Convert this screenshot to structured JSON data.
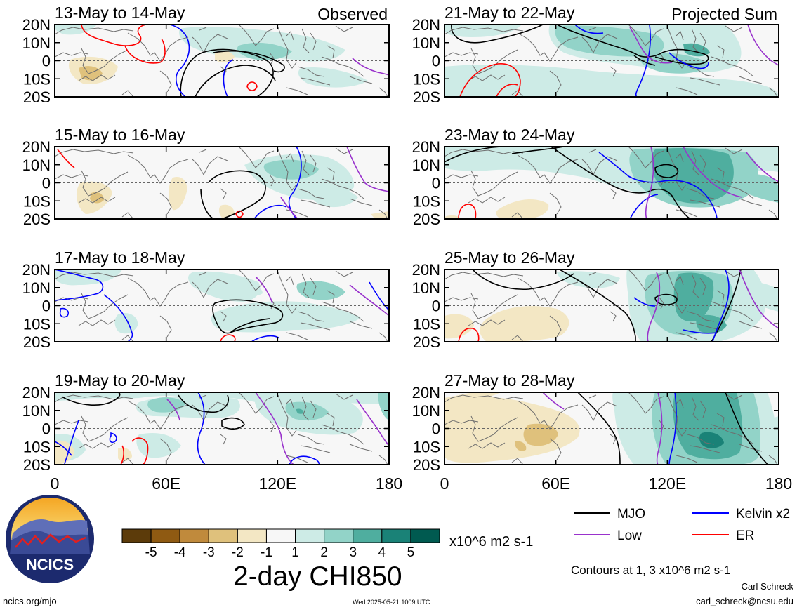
{
  "panels_left_header": "Observed",
  "panels_right_header": "Projected Sum",
  "lat_labels": [
    "20N",
    "10N",
    "0",
    "10S",
    "20S"
  ],
  "lon_labels": [
    "0",
    "60E",
    "120E",
    "180"
  ],
  "panels": [
    {
      "date": "13-May to 14-May",
      "column": "left",
      "row": 0
    },
    {
      "date": "15-May to 16-May",
      "column": "left",
      "row": 1
    },
    {
      "date": "17-May to 18-May",
      "column": "left",
      "row": 2
    },
    {
      "date": "19-May to 20-May",
      "column": "left",
      "row": 3
    },
    {
      "date": "21-May to 22-May",
      "column": "right",
      "row": 0
    },
    {
      "date": "23-May to 24-May",
      "column": "right",
      "row": 1
    },
    {
      "date": "25-May to 26-May",
      "column": "right",
      "row": 2
    },
    {
      "date": "27-May to 28-May",
      "column": "right",
      "row": 3
    }
  ],
  "colorbar": {
    "labels": [
      "-5",
      "-4",
      "-3",
      "-2",
      "-1",
      "1",
      "2",
      "3",
      "4",
      "5"
    ],
    "colors": [
      "#5c3b0a",
      "#8f5a12",
      "#c08a3c",
      "#dfc17c",
      "#f3e7c4",
      "#f7f7f7",
      "#cdebe6",
      "#92d3c8",
      "#4fae9f",
      "#1a8277",
      "#005a50"
    ],
    "units": "x10^6 m2 s-1",
    "title": "2-day CHI850"
  },
  "legend": {
    "items": [
      {
        "label": "MJO",
        "color": "#000000"
      },
      {
        "label": "Kelvin x2",
        "color": "#0000ff"
      },
      {
        "label": "Low",
        "color": "#9932cc"
      },
      {
        "label": "ER",
        "color": "#ff0000"
      }
    ],
    "contours_note": "Contours at 1, 3 x10^6 m2 s-1"
  },
  "logo_text": "NCICS",
  "footer": {
    "url": "ncics.org/mjo",
    "timestamp": "Wed 2025-05-21 1009 UTC",
    "author": "Carl Schreck",
    "email": "carl_schreck@ncsu.edu"
  }
}
